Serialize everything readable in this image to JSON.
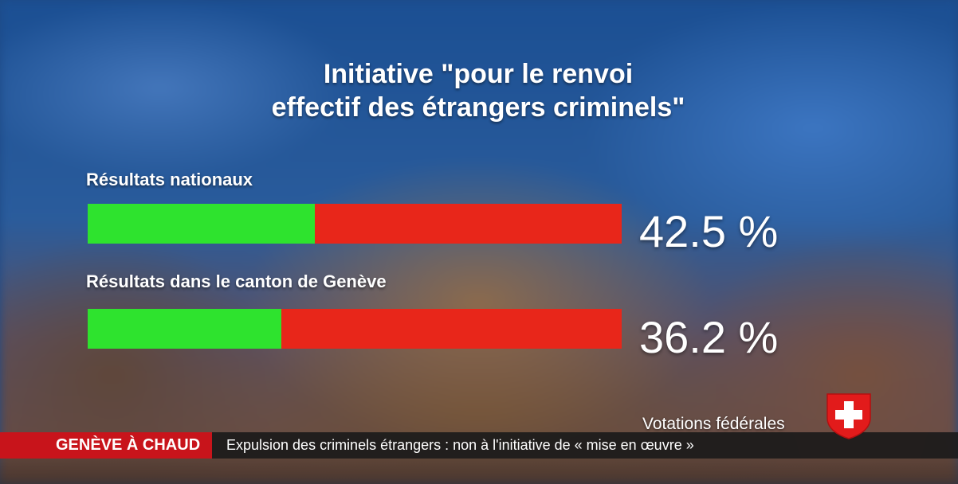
{
  "headline": {
    "line1": "Initiative \"pour le renvoi",
    "line2": "effectif des étrangers criminels\""
  },
  "results": [
    {
      "label": "Résultats nationaux",
      "yes_percent": 42.5,
      "percent_text": "42.5 %"
    },
    {
      "label": "Résultats dans le canton de Genève",
      "yes_percent": 36.2,
      "percent_text": "36.2 %"
    }
  ],
  "colors": {
    "yes": "#2ee32e",
    "no": "#e8261a",
    "ticker_tag": "#c8141b"
  },
  "branding": {
    "votations": "Votations fédérales",
    "icon": "swiss-cross-shield-icon"
  },
  "ticker": {
    "tag": "GENÈVE À CHAUD",
    "text": "Expulsion des criminels étrangers : non à l'initiative de « mise en œuvre »"
  }
}
